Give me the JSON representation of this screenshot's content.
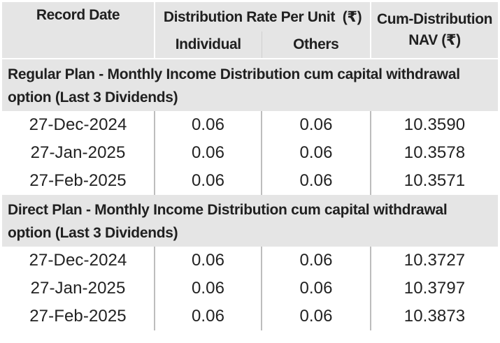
{
  "header": {
    "record_date": "Record Date",
    "distribution_rate": "Distribution Rate Per Unit  (₹)",
    "individual": "Individual",
    "others": "Others",
    "cum_nav_line1": "Cum-Distribution",
    "cum_nav_line2": "NAV (₹)"
  },
  "sections": [
    {
      "title": "Regular Plan - Monthly Income Distribution cum capital withdrawal option (Last 3 Dividends)",
      "rows": [
        {
          "date": "27-Dec-2024",
          "individual": "0.06",
          "others": "0.06",
          "nav": "10.3590"
        },
        {
          "date": "27-Jan-2025",
          "individual": "0.06",
          "others": "0.06",
          "nav": "10.3578"
        },
        {
          "date": "27-Feb-2025",
          "individual": "0.06",
          "others": "0.06",
          "nav": "10.3571"
        }
      ]
    },
    {
      "title": "Direct Plan - Monthly Income Distribution cum capital withdrawal option (Last 3 Dividends)",
      "rows": [
        {
          "date": "27-Dec-2024",
          "individual": "0.06",
          "others": "0.06",
          "nav": "10.3727"
        },
        {
          "date": "27-Jan-2025",
          "individual": "0.06",
          "others": "0.06",
          "nav": "10.3797"
        },
        {
          "date": "27-Feb-2025",
          "individual": "0.06",
          "others": "0.06",
          "nav": "10.3873"
        }
      ]
    }
  ]
}
